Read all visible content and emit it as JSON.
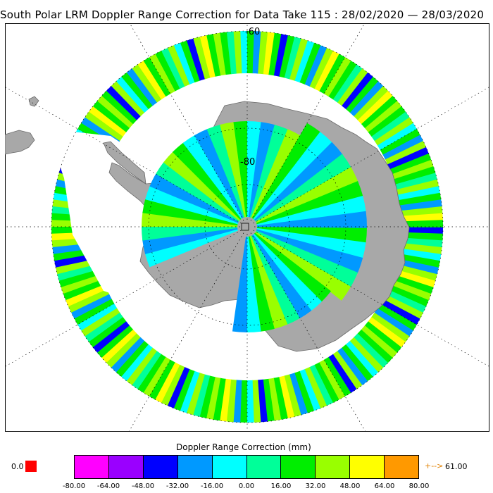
{
  "title": "South Polar LRM Doppler Range Correction for Data Take 115 : 28/02/2020 — 28/03/2020",
  "map": {
    "projection": "south-polar-stereographic",
    "lat_labels": [
      "-60",
      "-80"
    ],
    "colors": {
      "land": "#a8a8a8",
      "ocean": "#ffffff",
      "graticule": "#000000",
      "no_data_flag": "#ff0000"
    }
  },
  "legend": {
    "title": "Doppler Range Correction (mm)",
    "ticks": [
      "-80.00",
      "-64.00",
      "-48.00",
      "-32.00",
      "-16.00",
      "0.00",
      "16.00",
      "32.00",
      "48.00",
      "64.00",
      "80.00"
    ],
    "colors": [
      "#ff00ff",
      "#9a00ff",
      "#0000ff",
      "#0099ff",
      "#00ffff",
      "#00ff99",
      "#00ee00",
      "#99ff00",
      "#ffff00",
      "#ff9900"
    ],
    "nodata_label": "0.0",
    "nodata_color": "#ff0000",
    "over_arrow": "+-->",
    "over_value": "61.00",
    "over_color": "#e08000"
  }
}
